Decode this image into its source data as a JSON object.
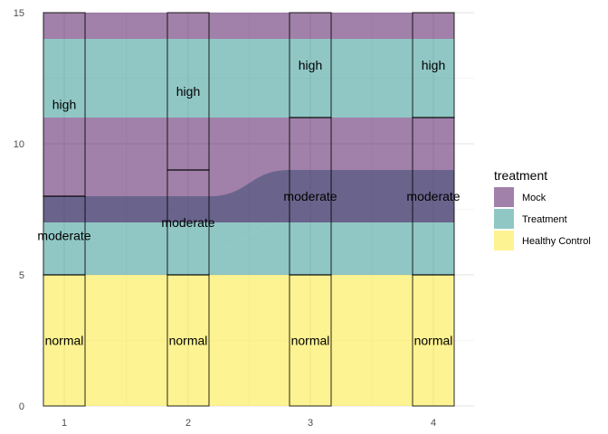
{
  "chart_data": {
    "type": "alluvial",
    "x": [
      1,
      2,
      3,
      4
    ],
    "x_tick_labels": [
      "1",
      "2",
      "3",
      "4"
    ],
    "y_tick_labels": [
      "0",
      "5",
      "10",
      "15"
    ],
    "y_ticks": [
      0,
      5,
      10,
      15
    ],
    "ylim": [
      0,
      15
    ],
    "grid": true,
    "legend": {
      "title": "treatment",
      "position": "right",
      "items": [
        {
          "name": "Mock",
          "color": "#440154"
        },
        {
          "name": "Treatment",
          "color": "#21908C"
        },
        {
          "name": "Healthy Control",
          "color": "#FDE725"
        }
      ]
    },
    "strata": [
      {
        "axis": 1,
        "label": "normal",
        "bottom": 0,
        "top": 5
      },
      {
        "axis": 1,
        "label": "moderate",
        "bottom": 5,
        "top": 8
      },
      {
        "axis": 1,
        "label": "high",
        "bottom": 8,
        "top": 15
      },
      {
        "axis": 2,
        "label": "normal",
        "bottom": 0,
        "top": 5
      },
      {
        "axis": 2,
        "label": "moderate",
        "bottom": 5,
        "top": 9
      },
      {
        "axis": 2,
        "label": "high",
        "bottom": 9,
        "top": 15
      },
      {
        "axis": 3,
        "label": "normal",
        "bottom": 0,
        "top": 5
      },
      {
        "axis": 3,
        "label": "moderate",
        "bottom": 5,
        "top": 11
      },
      {
        "axis": 3,
        "label": "high",
        "bottom": 11,
        "top": 15
      },
      {
        "axis": 4,
        "label": "normal",
        "bottom": 0,
        "top": 5
      },
      {
        "axis": 4,
        "label": "moderate",
        "bottom": 5,
        "top": 11
      },
      {
        "axis": 4,
        "label": "high",
        "bottom": 11,
        "top": 15
      }
    ],
    "flows": [
      {
        "group": "Healthy Control",
        "segments": [
          [
            0,
            5
          ],
          [
            0,
            5
          ],
          [
            0,
            5
          ],
          [
            0,
            5
          ]
        ]
      },
      {
        "group": "Treatment",
        "segments": [
          [
            5,
            6
          ],
          [
            5,
            6
          ],
          [
            5,
            7
          ],
          [
            5,
            7
          ]
        ]
      },
      {
        "group": "Treatment",
        "segments": [
          [
            6,
            8
          ],
          [
            6,
            8
          ],
          [
            7,
            9
          ],
          [
            7,
            9
          ]
        ]
      },
      {
        "group": "Mock",
        "segments": [
          [
            7,
            8
          ],
          [
            7,
            8
          ],
          [
            7,
            9
          ],
          [
            7,
            9
          ]
        ]
      },
      {
        "group": "Mock",
        "segments": [
          [
            8,
            11
          ],
          [
            8,
            11
          ],
          [
            9,
            11
          ],
          [
            9,
            11
          ]
        ]
      },
      {
        "group": "Treatment",
        "segments": [
          [
            11,
            14
          ],
          [
            11,
            14
          ],
          [
            11,
            14
          ],
          [
            11,
            14
          ]
        ]
      },
      {
        "group": "Mock",
        "segments": [
          [
            14,
            15
          ],
          [
            14,
            15
          ],
          [
            14,
            15
          ],
          [
            14,
            15
          ]
        ]
      }
    ]
  }
}
